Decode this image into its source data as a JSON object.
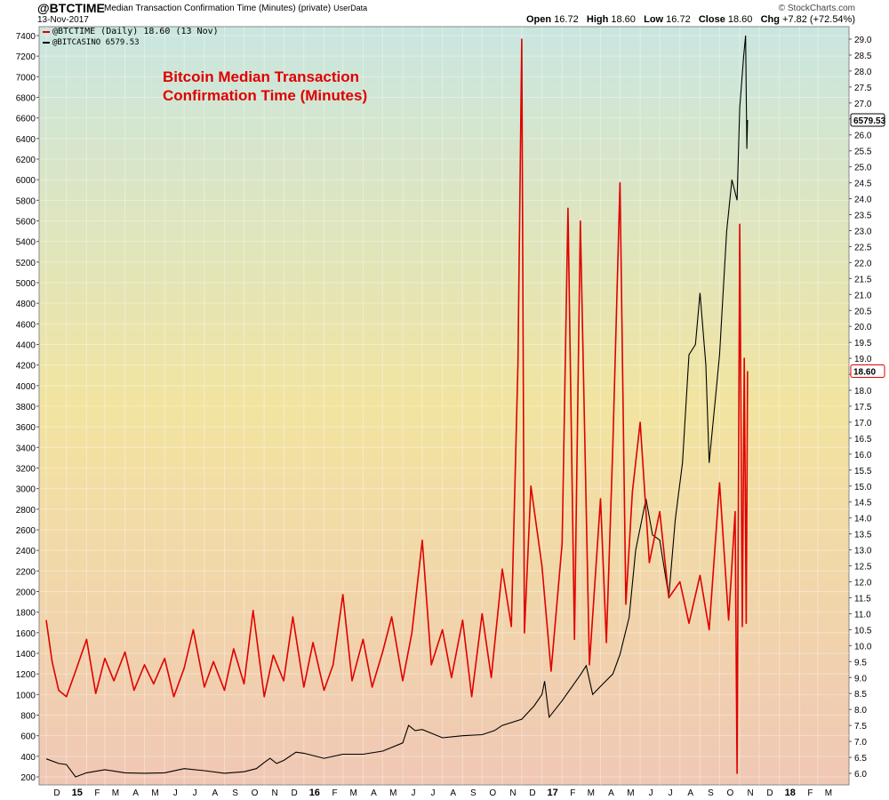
{
  "header": {
    "symbol": "@BTCTIME",
    "description": "Median Transaction Confirmation Time (Minutes) (private)",
    "source": "UserData",
    "date": "13-Nov-2017",
    "brand": "© StockCharts.com",
    "ohlc": {
      "open_label": "Open",
      "open": "16.72",
      "high_label": "High",
      "high": "18.60",
      "low_label": "Low",
      "low": "16.72",
      "close_label": "Close",
      "close": "18.60",
      "chg_label": "Chg",
      "chg": "+7.82 (+72.54%)"
    }
  },
  "legend": {
    "line1": "@BTCTIME (Daily) 18.60 (13 Nov)",
    "line2": "@BITCASINO 6579.53"
  },
  "colors": {
    "btctime": "#e00000",
    "bitcasino": "#000000",
    "bg_top": "#c9e6e0",
    "bg_mid": "#f2e4a0",
    "bg_bottom": "#f0c7b4"
  },
  "chart_data": {
    "type": "line",
    "annotation": "Bitcoin Median Transaction\nConfirmation Time (Minutes)",
    "x_ticks": [
      "D",
      "15",
      "F",
      "M",
      "A",
      "M",
      "J",
      "J",
      "A",
      "S",
      "O",
      "N",
      "D",
      "16",
      "F",
      "M",
      "A",
      "M",
      "J",
      "J",
      "A",
      "S",
      "O",
      "N",
      "D",
      "17",
      "F",
      "M",
      "A",
      "M",
      "J",
      "J",
      "A",
      "S",
      "O",
      "N",
      "D",
      "18",
      "F",
      "M"
    ],
    "left_axis": {
      "ticks": [
        200,
        400,
        600,
        800,
        1000,
        1200,
        1400,
        1600,
        1800,
        2000,
        2200,
        2400,
        2600,
        2800,
        3000,
        3200,
        3400,
        3600,
        3800,
        4000,
        4200,
        4400,
        4600,
        4800,
        5000,
        5200,
        5400,
        5600,
        5800,
        6000,
        6200,
        6400,
        6600,
        6800,
        7000,
        7200,
        7400
      ]
    },
    "right_axis": {
      "ticks": [
        6.0,
        6.5,
        7.0,
        7.5,
        8.0,
        8.5,
        9.0,
        9.5,
        10.0,
        10.5,
        11.0,
        11.5,
        12.0,
        12.5,
        13.0,
        13.5,
        14.0,
        14.5,
        15.0,
        15.5,
        16.0,
        16.5,
        17.0,
        17.5,
        18.0,
        18.5,
        19.0,
        19.5,
        20.0,
        20.5,
        21.0,
        21.5,
        22.0,
        22.5,
        23.0,
        23.5,
        24.0,
        24.5,
        25.0,
        25.5,
        26.0,
        26.5,
        27.0,
        27.5,
        28.0,
        28.5,
        29.0
      ]
    },
    "series": [
      {
        "name": "@BTCTIME (Daily)",
        "axis": "right",
        "points": [
          [
            "2014-12-01",
            10.8
          ],
          [
            "2014-12-10",
            9.5
          ],
          [
            "2014-12-20",
            8.6
          ],
          [
            "2015-01-01",
            8.4
          ],
          [
            "2015-01-15",
            9.2
          ],
          [
            "2015-02-01",
            10.2
          ],
          [
            "2015-02-15",
            8.5
          ],
          [
            "2015-03-01",
            9.6
          ],
          [
            "2015-03-15",
            8.9
          ],
          [
            "2015-04-01",
            9.8
          ],
          [
            "2015-04-15",
            8.6
          ],
          [
            "2015-05-01",
            9.4
          ],
          [
            "2015-05-15",
            8.8
          ],
          [
            "2015-06-01",
            9.6
          ],
          [
            "2015-06-15",
            8.4
          ],
          [
            "2015-07-01",
            9.3
          ],
          [
            "2015-07-15",
            10.5
          ],
          [
            "2015-08-01",
            8.7
          ],
          [
            "2015-08-15",
            9.5
          ],
          [
            "2015-09-01",
            8.6
          ],
          [
            "2015-09-15",
            9.9
          ],
          [
            "2015-10-01",
            8.8
          ],
          [
            "2015-10-15",
            11.1
          ],
          [
            "2015-11-01",
            8.4
          ],
          [
            "2015-11-15",
            9.7
          ],
          [
            "2015-12-01",
            8.9
          ],
          [
            "2015-12-15",
            10.9
          ],
          [
            "2016-01-01",
            8.7
          ],
          [
            "2016-01-15",
            10.1
          ],
          [
            "2016-02-01",
            8.6
          ],
          [
            "2016-02-15",
            9.4
          ],
          [
            "2016-03-01",
            11.6
          ],
          [
            "2016-03-15",
            8.9
          ],
          [
            "2016-04-01",
            10.2
          ],
          [
            "2016-04-15",
            8.7
          ],
          [
            "2016-05-01",
            9.8
          ],
          [
            "2016-05-15",
            10.9
          ],
          [
            "2016-06-01",
            8.9
          ],
          [
            "2016-06-15",
            10.4
          ],
          [
            "2016-07-01",
            13.3
          ],
          [
            "2016-07-15",
            9.4
          ],
          [
            "2016-08-01",
            10.5
          ],
          [
            "2016-08-15",
            9.0
          ],
          [
            "2016-09-01",
            10.8
          ],
          [
            "2016-09-15",
            8.4
          ],
          [
            "2016-10-01",
            11.0
          ],
          [
            "2016-10-15",
            9.0
          ],
          [
            "2016-11-01",
            12.4
          ],
          [
            "2016-11-15",
            10.6
          ],
          [
            "2016-11-25",
            18.8
          ],
          [
            "2016-12-01",
            29.0
          ],
          [
            "2016-12-05",
            10.4
          ],
          [
            "2016-12-15",
            15.0
          ],
          [
            "2017-01-01",
            12.5
          ],
          [
            "2017-01-15",
            9.2
          ],
          [
            "2017-02-01",
            13.2
          ],
          [
            "2017-02-10",
            23.7
          ],
          [
            "2017-02-20",
            10.2
          ],
          [
            "2017-03-01",
            23.3
          ],
          [
            "2017-03-15",
            9.4
          ],
          [
            "2017-04-01",
            14.6
          ],
          [
            "2017-04-10",
            10.1
          ],
          [
            "2017-04-20",
            16.3
          ],
          [
            "2017-05-01",
            24.5
          ],
          [
            "2017-05-10",
            11.3
          ],
          [
            "2017-05-20",
            14.8
          ],
          [
            "2017-06-01",
            17.0
          ],
          [
            "2017-06-15",
            12.6
          ],
          [
            "2017-07-01",
            14.2
          ],
          [
            "2017-07-15",
            11.5
          ],
          [
            "2017-08-01",
            12.0
          ],
          [
            "2017-08-15",
            10.7
          ],
          [
            "2017-09-01",
            12.2
          ],
          [
            "2017-09-15",
            10.5
          ],
          [
            "2017-10-01",
            15.1
          ],
          [
            "2017-10-15",
            10.8
          ],
          [
            "2017-10-25",
            14.2
          ],
          [
            "2017-10-28",
            6.0
          ],
          [
            "2017-11-01",
            23.2
          ],
          [
            "2017-11-05",
            10.6
          ],
          [
            "2017-11-08",
            19.0
          ],
          [
            "2017-11-11",
            10.7
          ],
          [
            "2017-11-13",
            18.6
          ]
        ]
      },
      {
        "name": "@BITCASINO",
        "axis": "left",
        "points": [
          [
            "2014-12-01",
            375
          ],
          [
            "2014-12-20",
            330
          ],
          [
            "2015-01-01",
            320
          ],
          [
            "2015-01-15",
            200
          ],
          [
            "2015-02-01",
            240
          ],
          [
            "2015-03-01",
            270
          ],
          [
            "2015-04-01",
            240
          ],
          [
            "2015-05-01",
            235
          ],
          [
            "2015-06-01",
            240
          ],
          [
            "2015-07-01",
            280
          ],
          [
            "2015-08-01",
            260
          ],
          [
            "2015-09-01",
            235
          ],
          [
            "2015-10-01",
            250
          ],
          [
            "2015-10-20",
            280
          ],
          [
            "2015-11-01",
            340
          ],
          [
            "2015-11-10",
            380
          ],
          [
            "2015-11-20",
            330
          ],
          [
            "2015-12-01",
            360
          ],
          [
            "2015-12-20",
            440
          ],
          [
            "2016-01-01",
            430
          ],
          [
            "2016-02-01",
            380
          ],
          [
            "2016-03-01",
            420
          ],
          [
            "2016-04-01",
            420
          ],
          [
            "2016-05-01",
            450
          ],
          [
            "2016-06-01",
            530
          ],
          [
            "2016-06-10",
            700
          ],
          [
            "2016-06-20",
            650
          ],
          [
            "2016-07-01",
            660
          ],
          [
            "2016-08-01",
            580
          ],
          [
            "2016-09-01",
            600
          ],
          [
            "2016-10-01",
            610
          ],
          [
            "2016-10-20",
            650
          ],
          [
            "2016-11-01",
            700
          ],
          [
            "2016-12-01",
            760
          ],
          [
            "2016-12-20",
            890
          ],
          [
            "2017-01-01",
            1000
          ],
          [
            "2017-01-05",
            1130
          ],
          [
            "2017-01-12",
            780
          ],
          [
            "2017-02-01",
            940
          ],
          [
            "2017-03-01",
            1190
          ],
          [
            "2017-03-10",
            1280
          ],
          [
            "2017-03-20",
            1000
          ],
          [
            "2017-04-01",
            1080
          ],
          [
            "2017-04-20",
            1200
          ],
          [
            "2017-05-01",
            1390
          ],
          [
            "2017-05-15",
            1750
          ],
          [
            "2017-05-25",
            2400
          ],
          [
            "2017-06-10",
            2900
          ],
          [
            "2017-06-20",
            2550
          ],
          [
            "2017-07-01",
            2500
          ],
          [
            "2017-07-15",
            1950
          ],
          [
            "2017-07-25",
            2700
          ],
          [
            "2017-08-05",
            3250
          ],
          [
            "2017-08-15",
            4300
          ],
          [
            "2017-08-25",
            4400
          ],
          [
            "2017-09-01",
            4900
          ],
          [
            "2017-09-10",
            4200
          ],
          [
            "2017-09-15",
            3250
          ],
          [
            "2017-09-25",
            3900
          ],
          [
            "2017-10-01",
            4300
          ],
          [
            "2017-10-12",
            5500
          ],
          [
            "2017-10-20",
            6000
          ],
          [
            "2017-10-28",
            5800
          ],
          [
            "2017-11-01",
            6700
          ],
          [
            "2017-11-07",
            7200
          ],
          [
            "2017-11-10",
            7400
          ],
          [
            "2017-11-12",
            6300
          ],
          [
            "2017-11-13",
            6579.53
          ]
        ]
      }
    ],
    "last_value_labels": {
      "bitcasino": "6579.53",
      "btctime": "18.60"
    }
  }
}
